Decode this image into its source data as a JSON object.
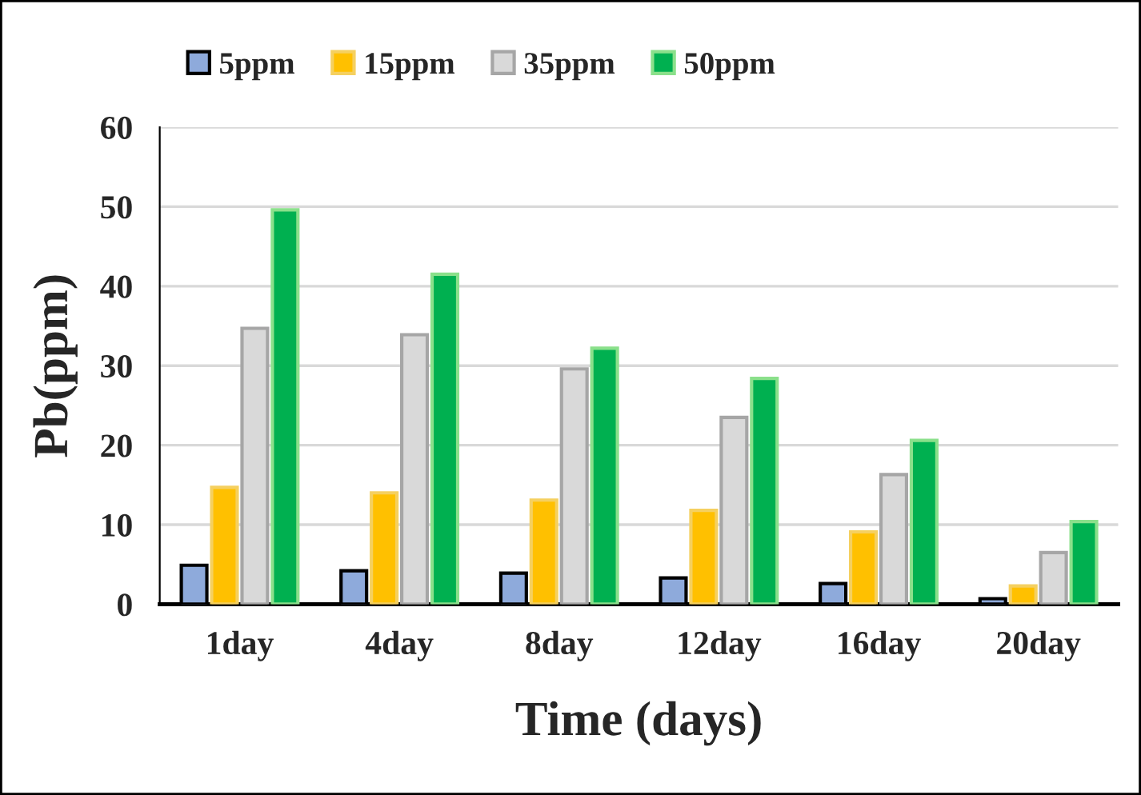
{
  "chart_data": {
    "type": "bar",
    "xlabel": "Time (days)",
    "ylabel": "Pb(ppm)",
    "categories": [
      "1day",
      "4day",
      "8day",
      "12day",
      "16day",
      "20day"
    ],
    "series": [
      {
        "name": "5ppm",
        "color": "#8eaadb",
        "values": [
          4.9,
          4.2,
          3.9,
          3.3,
          2.6,
          0.7
        ]
      },
      {
        "name": "15ppm",
        "color": "#ffc000",
        "values": [
          14.7,
          14.0,
          13.1,
          11.8,
          9.1,
          2.3
        ]
      },
      {
        "name": "35ppm",
        "color": "#d9d9d9",
        "values": [
          34.7,
          33.9,
          29.6,
          23.5,
          16.3,
          6.5
        ]
      },
      {
        "name": "50ppm",
        "color": "#00b050",
        "values": [
          49.6,
          41.5,
          32.2,
          28.4,
          20.6,
          10.4
        ]
      }
    ],
    "ylim": [
      0,
      60
    ],
    "yticks": [
      0,
      10,
      20,
      30,
      40,
      50,
      60
    ],
    "grid": "y",
    "legend": "top"
  }
}
